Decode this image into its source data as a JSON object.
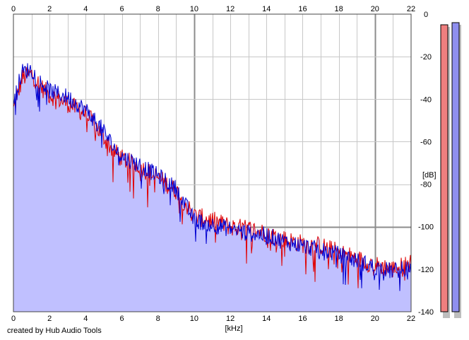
{
  "credit": "created by Hub Audio Tools",
  "colors": {
    "fill": "#c0c0ff",
    "left_channel": "#e00000",
    "right_channel": "#0000d0",
    "grid_minor": "#c8c8c8",
    "grid_major": "#8c8c8c",
    "meter_left": "#ef7f7f",
    "meter_right": "#8f8fef"
  },
  "chart_data": {
    "type": "line",
    "title": "",
    "xlabel": "[kHz]",
    "ylabel": "[dB]",
    "xlim": [
      0,
      22
    ],
    "ylim": [
      -140,
      0
    ],
    "x_ticks": [
      0,
      2,
      4,
      6,
      8,
      10,
      12,
      14,
      16,
      18,
      20,
      22
    ],
    "x_tick_labels": [
      "0",
      "2",
      "4",
      "6",
      "8",
      "10",
      "12",
      "14",
      "16",
      "18",
      "20",
      "22"
    ],
    "y_ticks": [
      0,
      -20,
      -40,
      -60,
      -80,
      -100,
      -120,
      -140
    ],
    "y_tick_labels": [
      "0",
      "-20",
      "-40",
      "-60",
      "-80",
      "-100",
      "-120",
      "-140"
    ],
    "grid": true,
    "x": [
      0,
      0.5,
      1,
      1.5,
      2,
      3,
      4,
      4.5,
      5,
      5.5,
      6,
      7,
      8,
      9,
      10,
      11,
      12,
      13,
      14,
      15,
      16,
      17,
      18,
      19,
      20,
      21,
      22
    ],
    "series": [
      {
        "values": [
          -45,
          -30,
          -28,
          -34,
          -38,
          -42,
          -47,
          -52,
          -58,
          -64,
          -68,
          -72,
          -77,
          -83,
          -95,
          -97,
          -100,
          -101,
          -103,
          -106,
          -108,
          -109,
          -112,
          -115,
          -118,
          -120,
          -117
        ]
      },
      {
        "values": [
          -40,
          -27,
          -26,
          -32,
          -36,
          -39,
          -45,
          -50,
          -55,
          -62,
          -67,
          -71,
          -76,
          -82,
          -97,
          -99,
          -101,
          -103,
          -104,
          -107,
          -109,
          -111,
          -113,
          -116,
          -119,
          -121,
          -119
        ]
      }
    ],
    "meters": {
      "left": -5,
      "right": -4,
      "ylim": [
        -140,
        0
      ]
    }
  }
}
